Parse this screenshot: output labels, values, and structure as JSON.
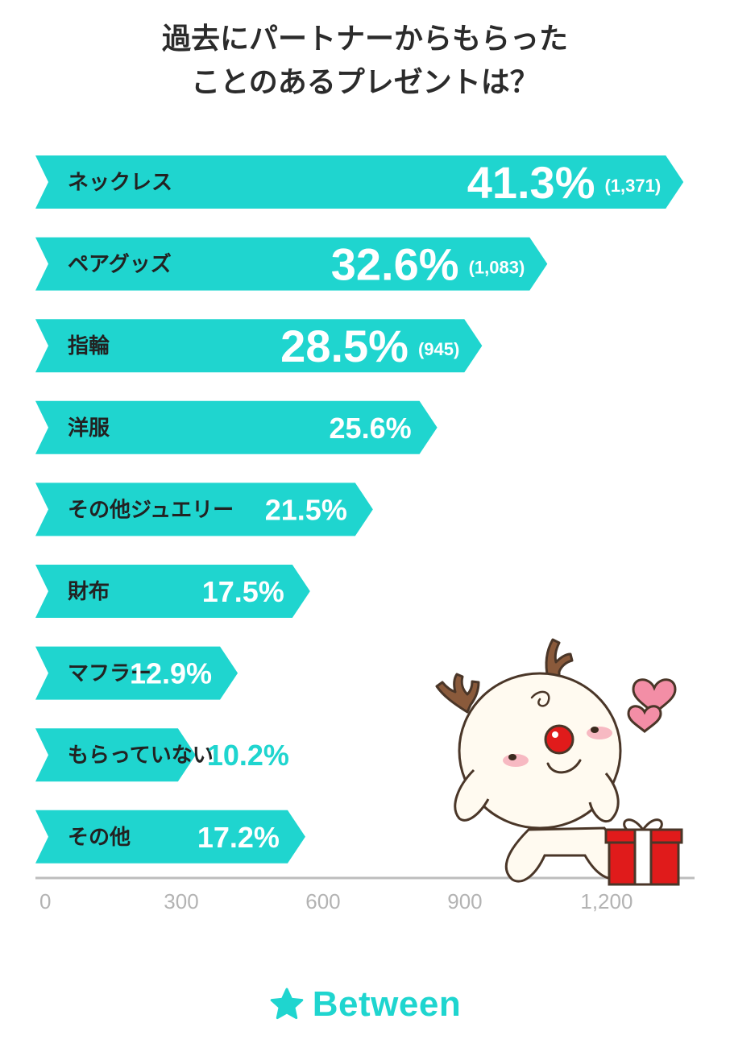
{
  "title": {
    "line1": "過去にパートナーからもらった",
    "line2": "ことのあるプレゼントは？"
  },
  "chart_data": {
    "type": "bar",
    "orientation": "horizontal",
    "categories": [
      "ネックレス",
      "ペアグッズ",
      "指輪",
      "洋服",
      "その他ジュエリー",
      "財布",
      "マフラー",
      "もらっていない",
      "その他"
    ],
    "percent_labels": [
      "41.3%",
      "32.6%",
      "28.5%",
      "25.6%",
      "21.5%",
      "17.5%",
      "12.9%",
      "10.2%",
      "17.2%"
    ],
    "count_labels": [
      "(1,371)",
      "(1,083)",
      "(945)",
      "",
      "",
      "",
      "",
      "",
      ""
    ],
    "values": [
      1371,
      1083,
      945,
      850,
      714,
      581,
      428,
      339,
      571
    ],
    "x_ticks": [
      "0",
      "300",
      "600",
      "900",
      "1,200"
    ],
    "x_tick_values": [
      0,
      300,
      600,
      900,
      1200
    ],
    "xlim": [
      0,
      1390
    ],
    "bar_color": "#1fd5cf",
    "grid": false
  },
  "brand": {
    "name": "Between",
    "color": "#1fd5cf"
  }
}
